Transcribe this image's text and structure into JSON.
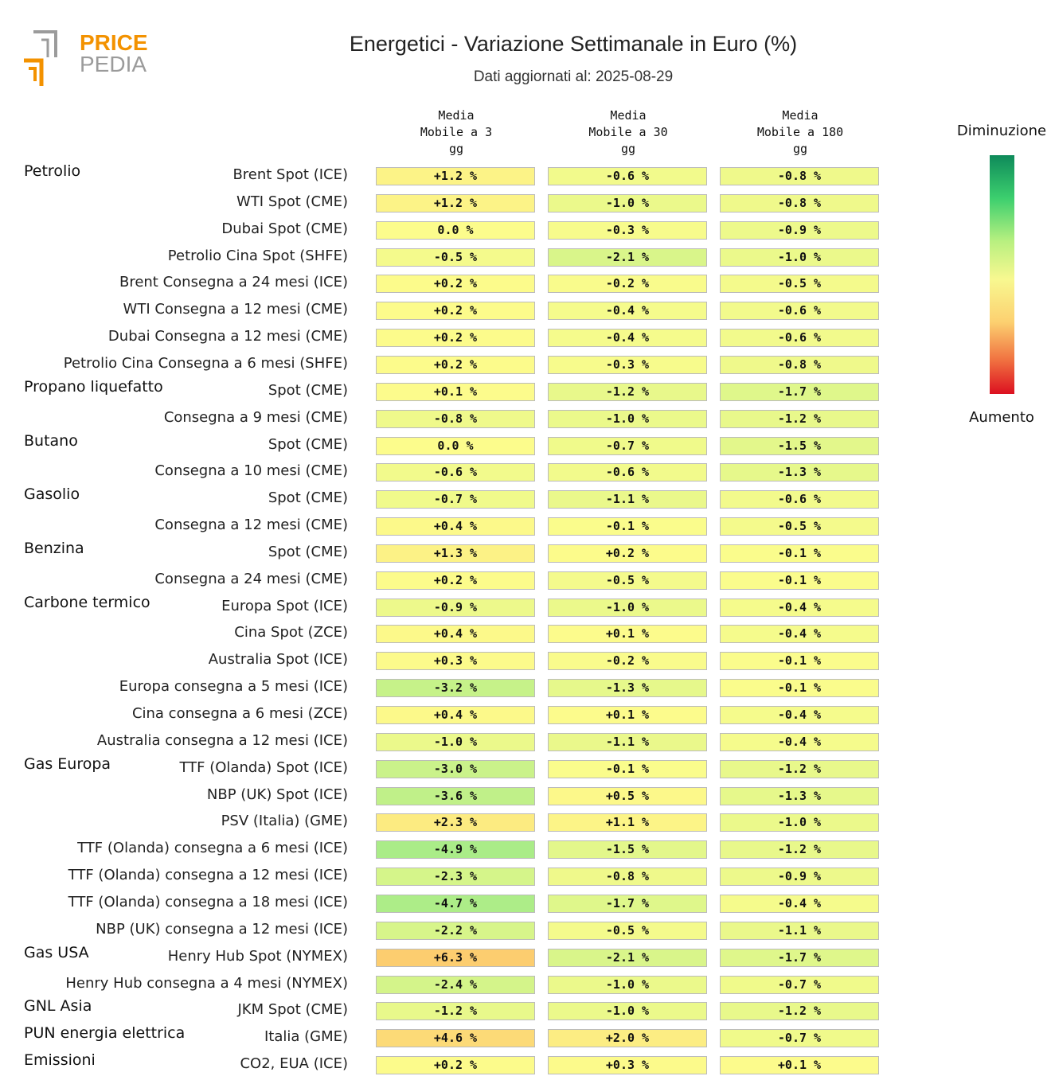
{
  "logo": {
    "line1": "PRICE",
    "line2": "PEDIA",
    "accent": "#f39200",
    "gray": "#9b9b9b"
  },
  "title": "Energetici - Variazione Settimanale in Euro (%)",
  "subtitle": "Dati aggiornati al: 2025-08-29",
  "columns": [
    [
      "Media",
      "Mobile a 3",
      "gg"
    ],
    [
      "Media",
      "Mobile a 30",
      "gg"
    ],
    [
      "Media",
      "Mobile a 180",
      "gg"
    ]
  ],
  "legend": {
    "top": "Diminuzione",
    "bottom": "Aumento"
  },
  "chart_data": {
    "type": "table",
    "title": "Energetici - Variazione Settimanale in Euro (%)",
    "rows": [
      {
        "group": "Petrolio",
        "label": "Brent Spot (ICE)",
        "values": [
          1.2,
          -0.6,
          -0.8
        ]
      },
      {
        "group": "",
        "label": "WTI Spot (CME)",
        "values": [
          1.2,
          -1.0,
          -0.8
        ]
      },
      {
        "group": "",
        "label": "Dubai Spot (CME)",
        "values": [
          0.0,
          -0.3,
          -0.9
        ]
      },
      {
        "group": "",
        "label": "Petrolio Cina Spot (SHFE)",
        "values": [
          -0.5,
          -2.1,
          -1.0
        ]
      },
      {
        "group": "",
        "label": "Brent Consegna a 24 mesi (ICE)",
        "values": [
          0.2,
          -0.2,
          -0.5
        ]
      },
      {
        "group": "",
        "label": "WTI Consegna a 12 mesi (CME)",
        "values": [
          0.2,
          -0.4,
          -0.6
        ]
      },
      {
        "group": "",
        "label": "Dubai Consegna a 12 mesi (CME)",
        "values": [
          0.2,
          -0.4,
          -0.6
        ]
      },
      {
        "group": "",
        "label": "Petrolio Cina Consegna a 6 mesi (SHFE)",
        "values": [
          0.2,
          -0.3,
          -0.8
        ]
      },
      {
        "group": "Propano liquefatto",
        "label": "Spot (CME)",
        "values": [
          0.1,
          -1.2,
          -1.7
        ]
      },
      {
        "group": "",
        "label": "Consegna a 9 mesi (CME)",
        "values": [
          -0.8,
          -1.0,
          -1.2
        ]
      },
      {
        "group": "Butano",
        "label": "Spot (CME)",
        "values": [
          0.0,
          -0.7,
          -1.5
        ]
      },
      {
        "group": "",
        "label": "Consegna a 10 mesi (CME)",
        "values": [
          -0.6,
          -0.6,
          -1.3
        ]
      },
      {
        "group": "Gasolio",
        "label": "Spot (CME)",
        "values": [
          -0.7,
          -1.1,
          -0.6
        ]
      },
      {
        "group": "",
        "label": "Consegna a 12 mesi (CME)",
        "values": [
          0.4,
          -0.1,
          -0.5
        ]
      },
      {
        "group": "Benzina",
        "label": "Spot (CME)",
        "values": [
          1.3,
          0.2,
          -0.1
        ]
      },
      {
        "group": "",
        "label": "Consegna a 24 mesi (CME)",
        "values": [
          0.2,
          -0.5,
          -0.1
        ]
      },
      {
        "group": "Carbone termico",
        "label": "Europa Spot (ICE)",
        "values": [
          -0.9,
          -1.0,
          -0.4
        ]
      },
      {
        "group": "",
        "label": "Cina Spot (ZCE)",
        "values": [
          0.4,
          0.1,
          -0.4
        ]
      },
      {
        "group": "",
        "label": "Australia Spot (ICE)",
        "values": [
          0.3,
          -0.2,
          -0.1
        ]
      },
      {
        "group": "",
        "label": "Europa consegna a 5 mesi (ICE)",
        "values": [
          -3.2,
          -1.3,
          -0.1
        ]
      },
      {
        "group": "",
        "label": "Cina consegna a 6 mesi (ZCE)",
        "values": [
          0.4,
          0.1,
          -0.4
        ]
      },
      {
        "group": "",
        "label": "Australia consegna a 12 mesi (ICE)",
        "values": [
          -1.0,
          -1.1,
          -0.4
        ]
      },
      {
        "group": "Gas Europa",
        "label": "TTF (Olanda) Spot (ICE)",
        "values": [
          -3.0,
          -0.1,
          -1.2
        ]
      },
      {
        "group": "",
        "label": "NBP (UK) Spot (ICE)",
        "values": [
          -3.6,
          0.5,
          -1.3
        ]
      },
      {
        "group": "",
        "label": "PSV (Italia) (GME)",
        "values": [
          2.3,
          1.1,
          -1.0
        ]
      },
      {
        "group": "",
        "label": "TTF (Olanda) consegna a 6 mesi (ICE)",
        "values": [
          -4.9,
          -1.5,
          -1.2
        ]
      },
      {
        "group": "",
        "label": "TTF (Olanda) consegna a 12 mesi (ICE)",
        "values": [
          -2.3,
          -0.8,
          -0.9
        ]
      },
      {
        "group": "",
        "label": "TTF (Olanda) consegna a 18 mesi (ICE)",
        "values": [
          -4.7,
          -1.7,
          -0.4
        ]
      },
      {
        "group": "",
        "label": "NBP (UK) consegna a 12 mesi (ICE)",
        "values": [
          -2.2,
          -0.5,
          -1.1
        ]
      },
      {
        "group": "Gas USA",
        "label": "Henry Hub Spot (NYMEX)",
        "values": [
          6.3,
          -2.1,
          -1.7
        ]
      },
      {
        "group": "",
        "label": "Henry Hub consegna a 4 mesi (NYMEX)",
        "values": [
          -2.4,
          -1.0,
          -0.7
        ]
      },
      {
        "group": "GNL Asia",
        "label": "JKM Spot (CME)",
        "values": [
          -1.2,
          -1.0,
          -1.2
        ]
      },
      {
        "group": "PUN energia elettrica",
        "label": "Italia (GME)",
        "values": [
          4.6,
          2.0,
          -0.7
        ]
      },
      {
        "group": "Emissioni",
        "label": "CO2, EUA (ICE)",
        "values": [
          0.2,
          0.3,
          0.1
        ]
      }
    ]
  }
}
